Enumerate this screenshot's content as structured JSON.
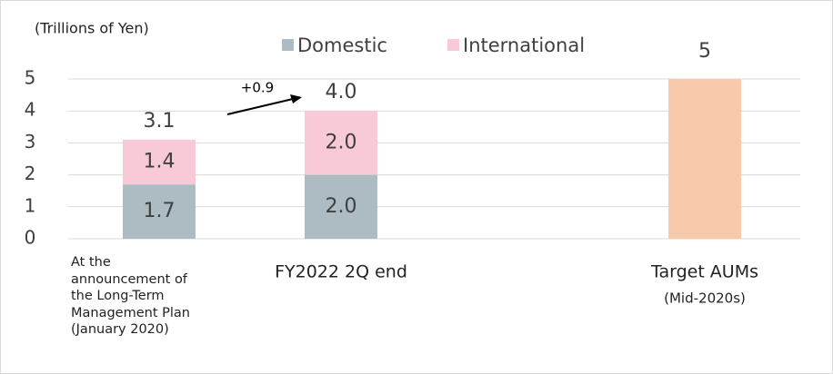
{
  "chart_data": {
    "type": "stacked_bar",
    "unit_label": "(Trillions of Yen)",
    "categories": [
      "At the\nannouncement of\nthe Long-Term\nManagement Plan\n(January 2020)",
      "FY2022 2Q end",
      null,
      "Target AUMs"
    ],
    "category_note": "(Mid-2020s)",
    "series": [
      {
        "name": "Domestic",
        "color": "#acbcc2",
        "values": [
          1.7,
          2.0,
          null,
          null
        ],
        "value_labels": [
          "1.7",
          "2.0",
          null,
          null
        ]
      },
      {
        "name": "International",
        "color": "#f8cad8",
        "values": [
          1.4,
          2.0,
          null,
          null
        ],
        "value_labels": [
          "1.4",
          "2.0",
          null,
          null
        ]
      }
    ],
    "totals": {
      "values": [
        3.1,
        4.0,
        null,
        null
      ],
      "value_labels": [
        "3.1",
        "4.0",
        null,
        null
      ]
    },
    "target": {
      "color": "#f8caab",
      "values": [
        null,
        null,
        null,
        5
      ]
    },
    "annotation": "+0.9",
    "ylim": [
      0,
      5
    ],
    "yticks": [
      0,
      1,
      2,
      3,
      4,
      5
    ],
    "grid": true
  }
}
